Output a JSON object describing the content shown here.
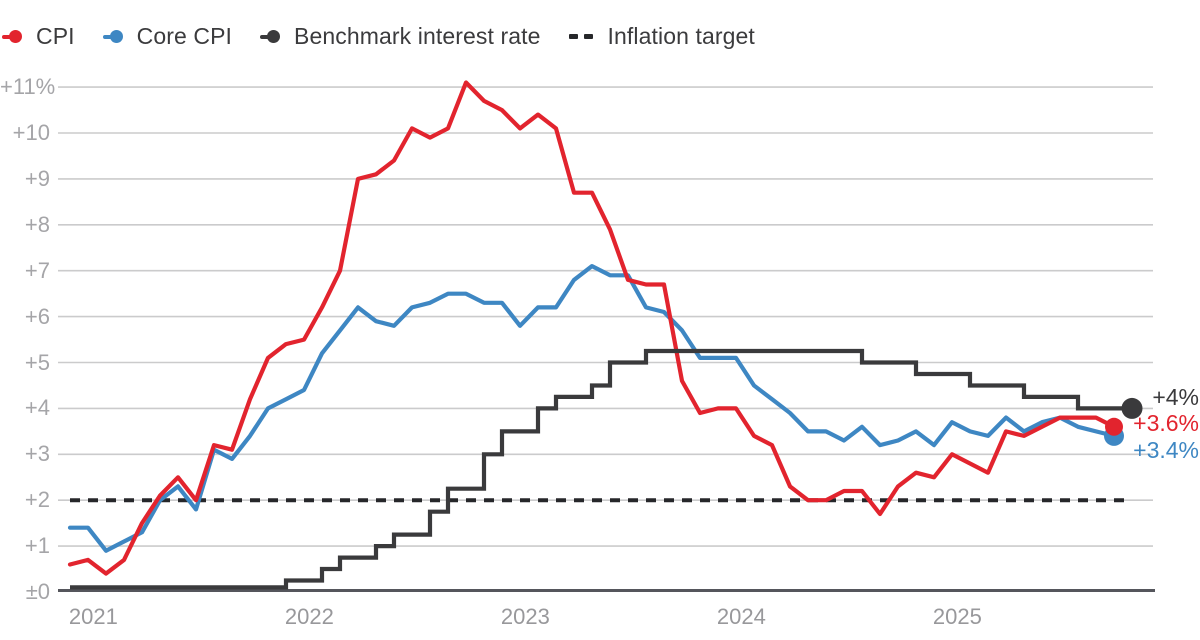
{
  "legend": {
    "items": [
      {
        "label": "CPI",
        "color": "#e2242e",
        "marker": "line-dot"
      },
      {
        "label": "Core CPI",
        "color": "#3e87c3",
        "marker": "line-dot"
      },
      {
        "label": "Benchmark interest rate",
        "color": "#3a3a3c",
        "marker": "line-dot"
      },
      {
        "label": "Inflation target",
        "color": "#26272a",
        "marker": "dashes"
      }
    ]
  },
  "y_axis": {
    "ticks": [
      "+11%",
      "+10",
      "+9",
      "+8",
      "+7",
      "+6",
      "+5",
      "+4",
      "+3",
      "+2",
      "+1",
      "±0"
    ],
    "values": [
      11,
      10,
      9,
      8,
      7,
      6,
      5,
      4,
      3,
      2,
      1,
      0
    ]
  },
  "x_axis": {
    "ticks": [
      "2021",
      "2022",
      "2023",
      "2024",
      "2025"
    ]
  },
  "colors": {
    "cpi": "#e2242e",
    "core_cpi": "#3e87c3",
    "benchmark_rate": "#3a3a3c",
    "inflation_target": "#26272a",
    "gridline": "#cbcbcc",
    "baseline": "#55565c",
    "axis_text": "#a5a5a8",
    "legend_text": "#3b3b3d"
  },
  "chart_data": {
    "type": "line",
    "frequency": "monthly",
    "x_range": [
      "Dec 2020",
      "Nov 2025"
    ],
    "ylim": [
      0,
      11.5
    ],
    "grid": "horizontal",
    "legend_position": "top-left",
    "series": [
      {
        "name": "CPI",
        "color": "#e2242e",
        "style": "solid",
        "end_value": 3.6,
        "values": [
          0.6,
          0.7,
          0.4,
          0.7,
          1.5,
          2.1,
          2.5,
          2.0,
          3.2,
          3.1,
          4.2,
          5.1,
          5.4,
          5.5,
          6.2,
          7.0,
          9.0,
          9.1,
          9.4,
          10.1,
          9.9,
          10.1,
          11.1,
          10.7,
          10.5,
          10.1,
          10.4,
          10.1,
          8.7,
          8.7,
          7.9,
          6.8,
          6.7,
          6.7,
          4.6,
          3.9,
          4.0,
          4.0,
          3.4,
          3.2,
          2.3,
          2.0,
          2.0,
          2.2,
          2.2,
          1.7,
          2.3,
          2.6,
          2.5,
          3.0,
          2.8,
          2.6,
          3.5,
          3.4,
          3.6,
          3.8,
          3.8,
          3.8,
          3.6
        ]
      },
      {
        "name": "Core CPI",
        "color": "#3e87c3",
        "style": "solid",
        "end_value": 3.4,
        "values": [
          1.4,
          1.4,
          0.9,
          1.1,
          1.3,
          2.0,
          2.3,
          1.8,
          3.1,
          2.9,
          3.4,
          4.0,
          4.2,
          4.4,
          5.2,
          5.7,
          6.2,
          5.9,
          5.8,
          6.2,
          6.3,
          6.5,
          6.5,
          6.3,
          6.3,
          5.8,
          6.2,
          6.2,
          6.8,
          7.1,
          6.9,
          6.9,
          6.2,
          6.1,
          5.7,
          5.1,
          5.1,
          5.1,
          4.5,
          4.2,
          3.9,
          3.5,
          3.5,
          3.3,
          3.6,
          3.2,
          3.3,
          3.5,
          3.2,
          3.7,
          3.5,
          3.4,
          3.8,
          3.5,
          3.7,
          3.8,
          3.6,
          3.5,
          3.4
        ]
      },
      {
        "name": "Benchmark interest rate",
        "color": "#3a3a3c",
        "style": "step",
        "end_value": 4.0,
        "values": [
          0.1,
          0.1,
          0.1,
          0.1,
          0.1,
          0.1,
          0.1,
          0.1,
          0.1,
          0.1,
          0.1,
          0.1,
          0.25,
          0.25,
          0.5,
          0.75,
          0.75,
          1.0,
          1.25,
          1.25,
          1.75,
          2.25,
          2.25,
          3.0,
          3.5,
          3.5,
          4.0,
          4.25,
          4.25,
          4.5,
          5.0,
          5.0,
          5.25,
          5.25,
          5.25,
          5.25,
          5.25,
          5.25,
          5.25,
          5.25,
          5.25,
          5.25,
          5.25,
          5.25,
          5.0,
          5.0,
          5.0,
          4.75,
          4.75,
          4.75,
          4.5,
          4.5,
          4.5,
          4.25,
          4.25,
          4.25,
          4.0,
          4.0,
          4.0,
          4.0
        ]
      },
      {
        "name": "Inflation target",
        "color": "#26272a",
        "style": "dashed",
        "value": 2.0
      }
    ],
    "end_labels": [
      {
        "text": "+4%",
        "series": "Benchmark interest rate",
        "color": "#3a3a3c"
      },
      {
        "text": "+3.6%",
        "series": "CPI",
        "color": "#e2242e"
      },
      {
        "text": "+3.4%",
        "series": "Core CPI",
        "color": "#3e87c3"
      }
    ]
  }
}
